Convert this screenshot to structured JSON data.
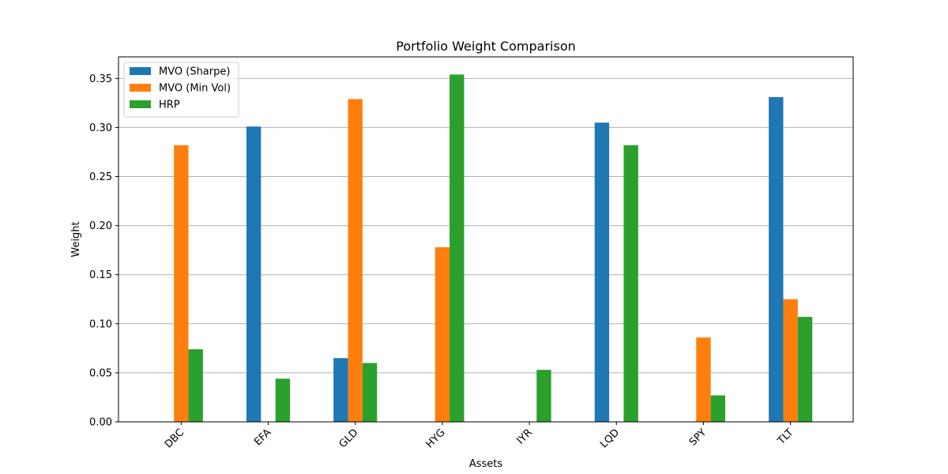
{
  "chart_data": {
    "type": "bar",
    "title": "Portfolio Weight Comparison",
    "xlabel": "Assets",
    "ylabel": "Weight",
    "categories": [
      "DBC",
      "EFA",
      "GLD",
      "HYG",
      "IYR",
      "LQD",
      "SPY",
      "TLT"
    ],
    "series": [
      {
        "name": "MVO (Sharpe)",
        "color": "#1f77b4",
        "values": [
          0.0,
          0.301,
          0.065,
          0.0,
          0.0,
          0.305,
          0.0,
          0.331
        ]
      },
      {
        "name": "MVO (Min Vol)",
        "color": "#ff7f0e",
        "values": [
          0.282,
          0.0,
          0.329,
          0.178,
          0.0,
          0.0,
          0.086,
          0.125
        ]
      },
      {
        "name": "HRP",
        "color": "#2ca02c",
        "values": [
          0.074,
          0.044,
          0.06,
          0.354,
          0.053,
          0.282,
          0.027,
          0.107
        ]
      }
    ],
    "ylim": [
      0,
      0.372
    ],
    "yticks": [
      "0.00",
      "0.05",
      "0.10",
      "0.15",
      "0.20",
      "0.25",
      "0.30",
      "0.35"
    ],
    "grid": "y",
    "legend": "top-left"
  }
}
